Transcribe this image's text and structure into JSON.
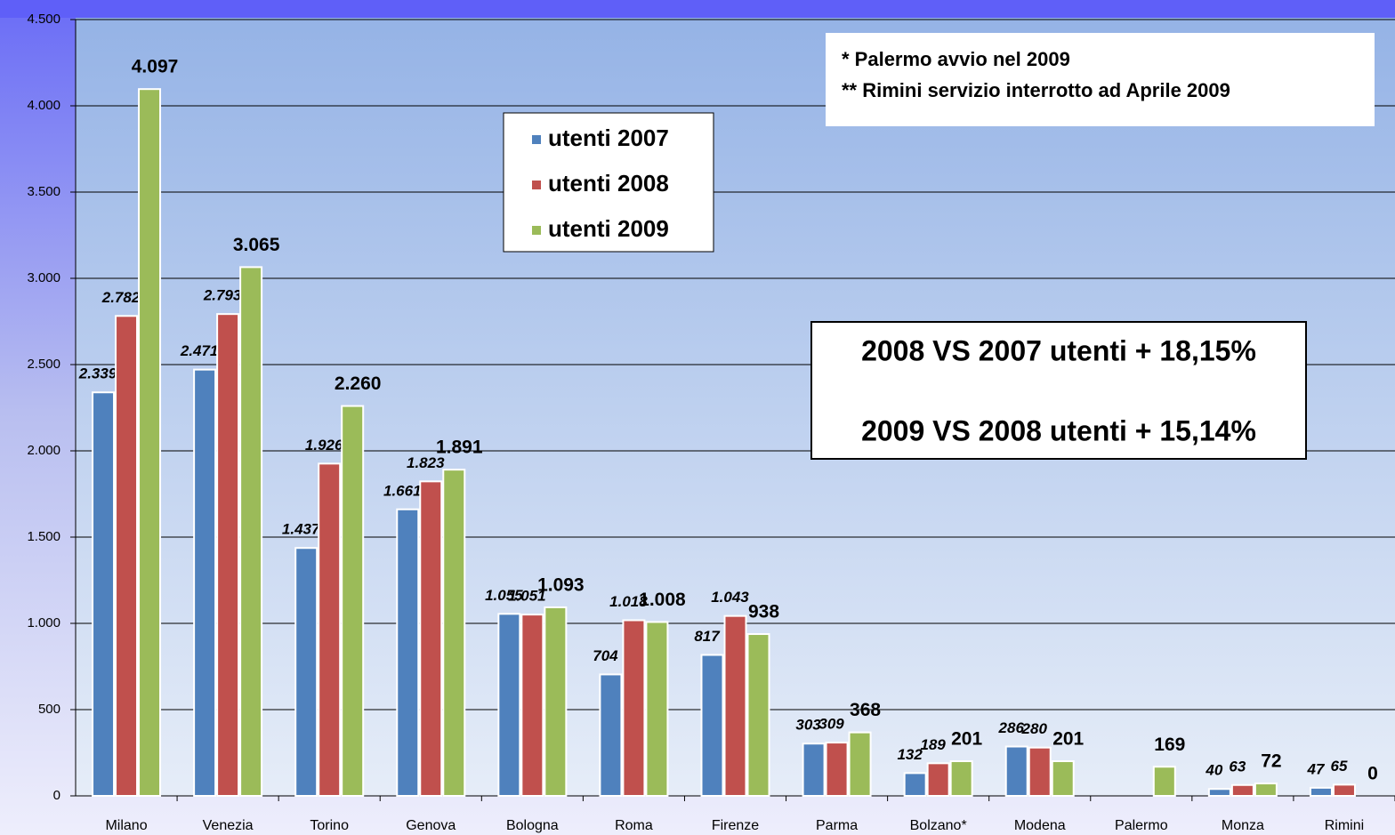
{
  "chart_data": {
    "type": "bar",
    "categories": [
      "Milano",
      "Venezia",
      "Torino",
      "Genova",
      "Bologna",
      "Roma",
      "Firenze",
      "Parma",
      "Bolzano*",
      "Modena",
      "Palermo",
      "Monza",
      "Rimini"
    ],
    "series": [
      {
        "name": "utenti 2007",
        "color": "#4f81bd",
        "values": [
          2339,
          2471,
          1437,
          1661,
          1055,
          704,
          817,
          303,
          132,
          286,
          null,
          40,
          47
        ],
        "value_labels": [
          "2.339",
          "2.471",
          "1.437",
          "1.661",
          "1.055",
          "704",
          "817",
          "303",
          "132",
          "286",
          null,
          "40",
          "47"
        ]
      },
      {
        "name": "utenti 2008",
        "color": "#c0504d",
        "values": [
          2782,
          2793,
          1926,
          1823,
          1051,
          1018,
          1043,
          309,
          189,
          280,
          null,
          63,
          65
        ],
        "value_labels": [
          "2.782",
          "2.793",
          "1.926",
          "1.823",
          "1.051",
          "1.018",
          "1.043",
          "309",
          "189",
          "280",
          null,
          "63",
          "65"
        ]
      },
      {
        "name": "utenti 2009",
        "color": "#9bbb59",
        "values": [
          4097,
          3065,
          2260,
          1891,
          1093,
          1008,
          938,
          368,
          201,
          201,
          169,
          72,
          0
        ],
        "value_labels": [
          "4.097",
          "3.065",
          "2.260",
          "1.891",
          "1.093",
          "1.008",
          "938",
          "368",
          "201",
          "201",
          "169",
          "72",
          "0"
        ]
      }
    ],
    "ylim": [
      0,
      4500
    ],
    "yticks": [
      0,
      500,
      {
        "value": 1000,
        "label": "1.000"
      },
      {
        "value": 1500,
        "label": "1.500"
      },
      {
        "value": 2000,
        "label": "2.000"
      },
      {
        "value": 2500,
        "label": "2.500"
      },
      {
        "value": 3000,
        "label": "3.000"
      },
      {
        "value": 3500,
        "label": "3.500"
      },
      {
        "value": 4000,
        "label": "4.000"
      },
      {
        "value": 4500,
        "label": "4.500"
      }
    ],
    "grid": true,
    "notes": [
      "* Palermo avvio nel 2009",
      "** Rimini servizio interrotto ad Aprile 2009"
    ],
    "comparisons": [
      "2008 VS 2007 utenti + 18,15%",
      "2009 VS 2008 utenti + 15,14%"
    ]
  }
}
